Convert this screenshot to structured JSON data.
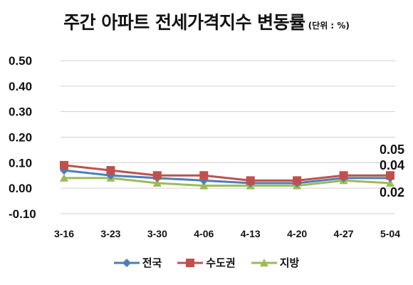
{
  "chart_data": {
    "type": "line",
    "title": "주간 아파트 전세가격지수 변동률",
    "unit_note": "(단위 : %)",
    "categories": [
      "3-16",
      "3-23",
      "3-30",
      "4-06",
      "4-13",
      "4-20",
      "4-27",
      "5-04"
    ],
    "y_ticks": [
      "0.50",
      "0.40",
      "0.30",
      "0.20",
      "0.10",
      "0.00",
      "-0.10"
    ],
    "ylim": [
      -0.1,
      0.5
    ],
    "grid": true,
    "legend_position": "bottom",
    "series": [
      {
        "name": "전국",
        "color": "#4a7ebb",
        "marker": "diamond",
        "values": [
          0.07,
          0.05,
          0.04,
          0.03,
          0.02,
          0.02,
          0.04,
          0.04
        ]
      },
      {
        "name": "수도권",
        "color": "#c0504d",
        "marker": "square",
        "values": [
          0.09,
          0.07,
          0.05,
          0.05,
          0.03,
          0.03,
          0.05,
          0.05
        ]
      },
      {
        "name": "지방",
        "color": "#9bbb59",
        "marker": "triangle",
        "values": [
          0.04,
          0.04,
          0.02,
          0.01,
          0.01,
          0.01,
          0.03,
          0.02
        ]
      }
    ],
    "end_labels": [
      "0.05",
      "0.04",
      "0.02"
    ]
  }
}
